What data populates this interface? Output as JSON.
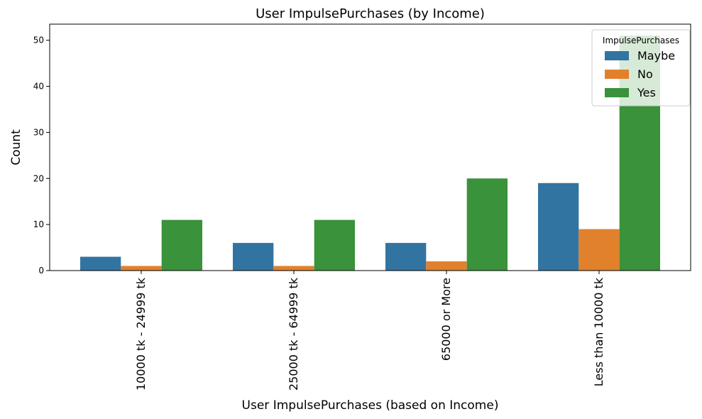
{
  "chart_data": {
    "type": "bar",
    "title": "User ImpulsePurchases (by Income)",
    "xlabel": "User ImpulsePurchases (based on Income)",
    "ylabel": "Count",
    "categories": [
      "10000 tk - 24999 tk",
      "25000 tk - 64999 tk",
      "65000 or More",
      "Less than 10000 tk"
    ],
    "ylim": [
      0,
      53.5
    ],
    "yticks": [
      0,
      10,
      20,
      30,
      40,
      50
    ],
    "grid": false,
    "legend": {
      "title": "ImpulsePurchases",
      "placement": "top-right"
    },
    "series": [
      {
        "name": "Maybe",
        "color": "#3274a1",
        "values": [
          3,
          6,
          6,
          19
        ]
      },
      {
        "name": "No",
        "color": "#e1812c",
        "values": [
          1,
          1,
          2,
          9
        ]
      },
      {
        "name": "Yes",
        "color": "#3a923a",
        "values": [
          11,
          11,
          20,
          51
        ]
      }
    ]
  }
}
